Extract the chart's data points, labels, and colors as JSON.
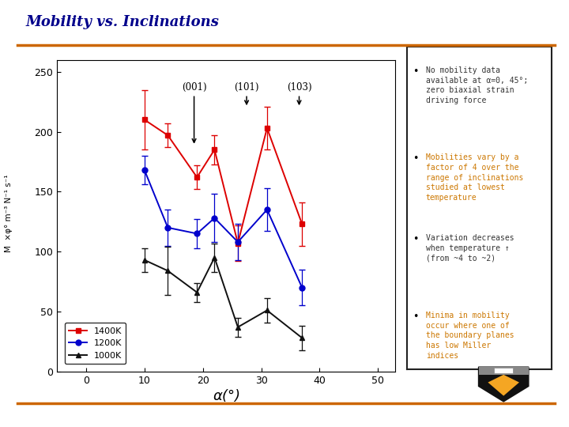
{
  "title": "Mobility vs. Inclinations",
  "xlabel": "α(°)",
  "xlim": [
    -5,
    53
  ],
  "ylim": [
    0,
    260
  ],
  "xticks": [
    0,
    10,
    20,
    30,
    40,
    50
  ],
  "yticks": [
    0,
    50,
    100,
    150,
    200,
    250
  ],
  "bg_color": "#ffffff",
  "plot_bg": "#ffffff",
  "series_order": [
    "1400K",
    "1200K",
    "1000K"
  ],
  "series": {
    "1400K": {
      "color": "#dd0000",
      "marker": "s",
      "markersize": 5,
      "x": [
        10,
        14,
        19,
        22,
        26,
        31,
        37
      ],
      "y": [
        210,
        197,
        162,
        185,
        107,
        203,
        123
      ],
      "yerr": [
        25,
        10,
        10,
        12,
        15,
        18,
        18
      ]
    },
    "1200K": {
      "color": "#0000cc",
      "marker": "o",
      "markersize": 5,
      "x": [
        10,
        14,
        19,
        22,
        26,
        31,
        37
      ],
      "y": [
        168,
        120,
        115,
        128,
        108,
        135,
        70
      ],
      "yerr": [
        12,
        15,
        12,
        20,
        15,
        18,
        15
      ]
    },
    "1000K": {
      "color": "#111111",
      "marker": "^",
      "markersize": 5,
      "x": [
        10,
        14,
        19,
        22,
        26,
        31,
        37
      ],
      "y": [
        93,
        84,
        66,
        95,
        37,
        51,
        28
      ],
      "yerr": [
        10,
        20,
        8,
        12,
        8,
        10,
        10
      ]
    }
  },
  "annotations": [
    {
      "text": "(001)",
      "xt": 18.5,
      "yt": 235,
      "xa": 18.5,
      "ya": 188
    },
    {
      "text": "(101)",
      "xt": 27.5,
      "yt": 235,
      "xa": 27.5,
      "ya": 220
    },
    {
      "text": "(103)",
      "xt": 36.5,
      "yt": 235,
      "xa": 36.5,
      "ya": 220
    }
  ],
  "bullet_points": [
    {
      "text": "No mobility data\navailable at α=0, 45°;\nzero biaxial strain\ndriving force",
      "color": "#333333"
    },
    {
      "text": "Mobilities vary by a\nfactor of 4 over the\nrange of inclinations\nstudied at lowest\ntemperature",
      "color": "#cc7700"
    },
    {
      "text": "Variation decreases\nwhen temperature ↑\n(from ~4 to ~2)",
      "color": "#333333"
    },
    {
      "text": "Minima in mobility\noccur where one of\nthe boundary planes\nhas low Miller\nindices",
      "color": "#cc7700"
    }
  ],
  "title_color": "#00008b",
  "orange_color": "#cc6600",
  "box_text_font": "monospace"
}
